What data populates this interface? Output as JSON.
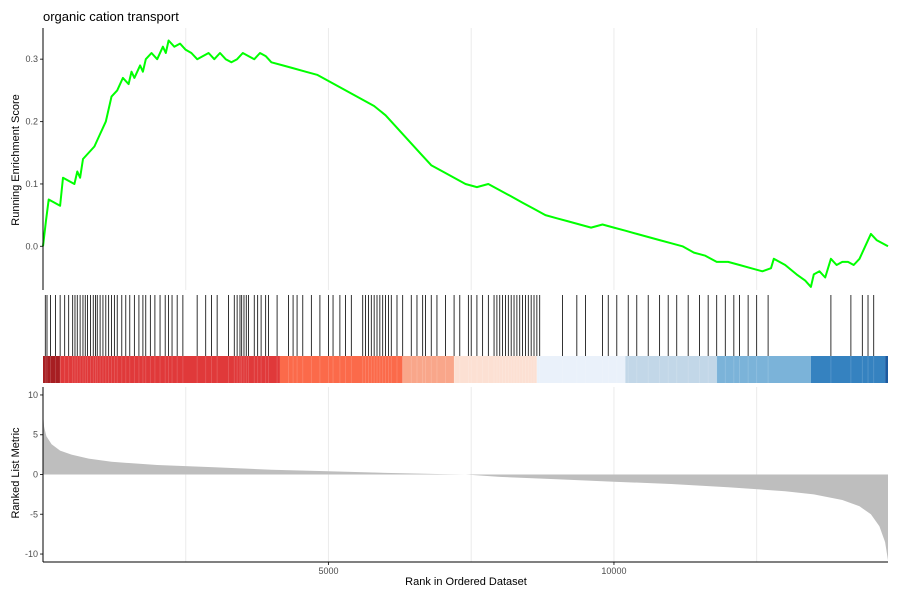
{
  "chart_data": {
    "type": "line",
    "title": "organic cation transport",
    "xlabel": "Rank in Ordered Dataset",
    "xlim": [
      0,
      14800
    ],
    "x_ticks": [
      5000,
      10000
    ],
    "grid": "vertical major gridlines",
    "line_color": "#00ff00",
    "es_panel": {
      "ylabel": "Running Enrichment Score",
      "ylim": [
        -0.07,
        0.35
      ],
      "y_ticks": [
        0.0,
        0.1,
        0.2,
        0.3
      ],
      "y_tick_labels": [
        "0.0",
        "0.1",
        "0.2",
        "0.3"
      ],
      "series": [
        {
          "x": [
            0,
            50,
            100,
            300,
            350,
            550,
            600,
            650,
            700,
            900,
            1000,
            1100,
            1200,
            1300,
            1350,
            1400,
            1500,
            1550,
            1600,
            1700,
            1750,
            1800,
            1900,
            2000,
            2100,
            2150,
            2200,
            2300,
            2400,
            2500,
            2600,
            2700,
            2800,
            2900,
            3000,
            3100,
            3200,
            3300,
            3400,
            3500,
            3600,
            3700,
            3800,
            3900,
            4000,
            4200,
            4400,
            4600,
            4800,
            5000,
            5200,
            5400,
            5600,
            5800,
            6000,
            6200,
            6400,
            6600,
            6800,
            7000,
            7200,
            7400,
            7600,
            7800,
            8000,
            8200,
            8400,
            8600,
            8800,
            9000,
            9200,
            9400,
            9600,
            9800,
            10000,
            10200,
            10400,
            10600,
            10800,
            11000,
            11200,
            11400,
            11600,
            11800,
            12000,
            12200,
            12400,
            12600,
            12750,
            12800,
            13000,
            13200,
            13350,
            13450,
            13500,
            13600,
            13700,
            13800,
            13900,
            14000,
            14100,
            14200,
            14300,
            14400,
            14500,
            14600,
            14800
          ],
          "y": [
            0.0,
            0.04,
            0.075,
            0.065,
            0.11,
            0.1,
            0.12,
            0.11,
            0.14,
            0.16,
            0.18,
            0.2,
            0.24,
            0.25,
            0.26,
            0.27,
            0.26,
            0.28,
            0.27,
            0.29,
            0.28,
            0.3,
            0.31,
            0.3,
            0.32,
            0.31,
            0.33,
            0.32,
            0.325,
            0.315,
            0.31,
            0.3,
            0.305,
            0.31,
            0.3,
            0.31,
            0.3,
            0.295,
            0.3,
            0.31,
            0.305,
            0.3,
            0.31,
            0.305,
            0.295,
            0.29,
            0.285,
            0.28,
            0.275,
            0.265,
            0.255,
            0.245,
            0.235,
            0.225,
            0.21,
            0.19,
            0.17,
            0.15,
            0.13,
            0.12,
            0.11,
            0.1,
            0.095,
            0.1,
            0.09,
            0.08,
            0.07,
            0.06,
            0.05,
            0.045,
            0.04,
            0.035,
            0.03,
            0.035,
            0.03,
            0.025,
            0.02,
            0.015,
            0.01,
            0.005,
            0.0,
            -0.01,
            -0.015,
            -0.025,
            -0.025,
            -0.03,
            -0.035,
            -0.04,
            -0.035,
            -0.02,
            -0.03,
            -0.045,
            -0.055,
            -0.065,
            -0.045,
            -0.04,
            -0.05,
            -0.02,
            -0.03,
            -0.025,
            -0.025,
            -0.03,
            -0.02,
            0.0,
            0.02,
            0.01,
            0.0
          ]
        }
      ]
    },
    "hits_panel": {
      "hit_positions": [
        40,
        70,
        130,
        220,
        300,
        380,
        450,
        520,
        560,
        600,
        650,
        700,
        740,
        780,
        830,
        880,
        920,
        950,
        1000,
        1050,
        1100,
        1150,
        1200,
        1250,
        1300,
        1380,
        1450,
        1520,
        1600,
        1680,
        1750,
        1800,
        1880,
        1960,
        2050,
        2140,
        2200,
        2260,
        2350,
        2450,
        2700,
        2850,
        2950,
        3050,
        3250,
        3350,
        3400,
        3450,
        3480,
        3520,
        3560,
        3600,
        3700,
        3760,
        3820,
        3900,
        3950,
        4100,
        4300,
        4380,
        4450,
        4550,
        4700,
        4850,
        5000,
        5080,
        5200,
        5300,
        5400,
        5600,
        5650,
        5700,
        5750,
        5800,
        5850,
        5900,
        5950,
        6000,
        6050,
        6100,
        6200,
        6300,
        6450,
        6550,
        6650,
        6700,
        6800,
        6900,
        7050,
        7200,
        7300,
        7450,
        7500,
        7600,
        7700,
        7800,
        7900,
        7950,
        8000,
        8050,
        8100,
        8150,
        8200,
        8250,
        8300,
        8350,
        8400,
        8450,
        8500,
        8550,
        8600,
        8650,
        8700,
        9100,
        9350,
        9500,
        9800,
        9900,
        10050,
        10250,
        10400,
        10600,
        10800,
        10950,
        11100,
        11300,
        11500,
        11650,
        11800,
        11950,
        12100,
        12200,
        12350,
        12500,
        12700,
        13800,
        14150,
        14350,
        14450,
        14550
      ],
      "color_bands": [
        {
          "from": 0,
          "to": 300,
          "color": "#a71e22"
        },
        {
          "from": 300,
          "to": 4150,
          "color": "#e0393a"
        },
        {
          "from": 4150,
          "to": 6300,
          "color": "#fb6a4a"
        },
        {
          "from": 6300,
          "to": 7200,
          "color": "#f9a68a"
        },
        {
          "from": 7200,
          "to": 8650,
          "color": "#fce0d3"
        },
        {
          "from": 8650,
          "to": 10200,
          "color": "#eaf1fa"
        },
        {
          "from": 10200,
          "to": 11800,
          "color": "#c2d7e8"
        },
        {
          "from": 11800,
          "to": 13450,
          "color": "#7bb3d9"
        },
        {
          "from": 13450,
          "to": 14750,
          "color": "#3582c0"
        },
        {
          "from": 14750,
          "to": 14800,
          "color": "#1b5aa0"
        }
      ]
    },
    "metric_panel": {
      "ylabel": "Ranked List Metric",
      "ylim": [
        -11,
        11
      ],
      "y_ticks": [
        10,
        5,
        0,
        -5,
        -10
      ],
      "y_tick_labels": [
        "10",
        "5",
        "0",
        "-5",
        "-10"
      ],
      "fill_color": "#bebebe",
      "x": [
        0,
        20,
        60,
        150,
        300,
        500,
        800,
        1200,
        2000,
        3000,
        4000,
        5000,
        6000,
        7000,
        7400,
        8000,
        9000,
        10000,
        11000,
        12000,
        13000,
        13500,
        14000,
        14300,
        14500,
        14650,
        14750,
        14800
      ],
      "y": [
        7.8,
        6.0,
        4.8,
        3.8,
        3.0,
        2.5,
        2.0,
        1.6,
        1.2,
        0.9,
        0.6,
        0.4,
        0.2,
        0.05,
        0.0,
        -0.3,
        -0.6,
        -0.9,
        -1.2,
        -1.6,
        -2.1,
        -2.5,
        -3.2,
        -4.0,
        -5.0,
        -6.5,
        -8.5,
        -10.8
      ]
    }
  }
}
